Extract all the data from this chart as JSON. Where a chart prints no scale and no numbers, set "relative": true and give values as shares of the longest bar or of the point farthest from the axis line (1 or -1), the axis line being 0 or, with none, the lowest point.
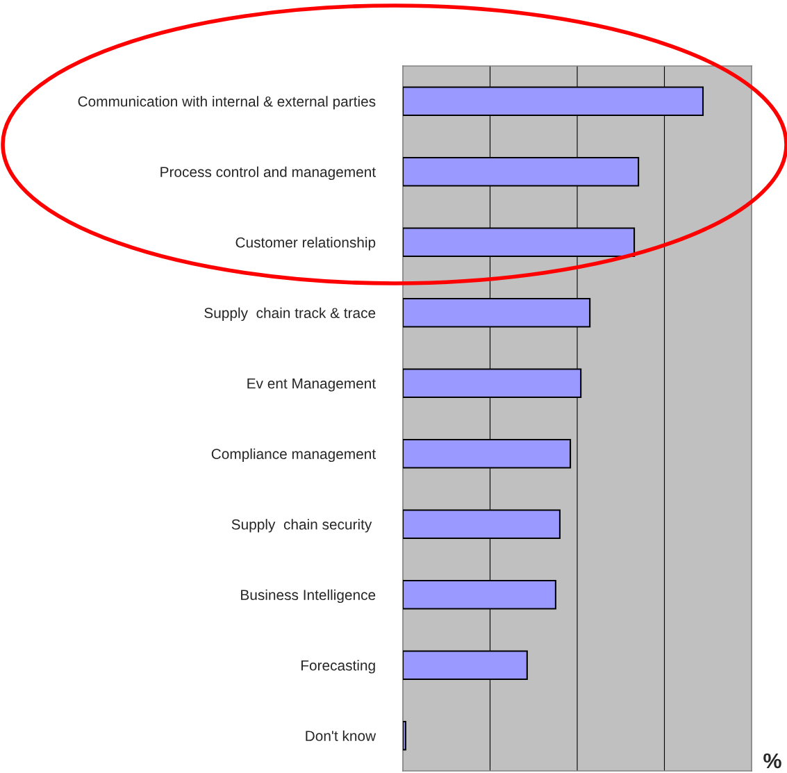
{
  "chart_data": {
    "type": "bar",
    "orientation": "horizontal",
    "relative": true,
    "xlabel": "%",
    "categories": [
      "Communication with internal & external parties",
      "Process control and management",
      "Customer relationship",
      "Supply  chain track & trace",
      "Ev ent Management",
      "Compliance management",
      "Supply  chain security ",
      "Business Intelligence",
      "Forecasting",
      "Don't know"
    ],
    "values": [
      1,
      0.785,
      0.771,
      0.623,
      0.593,
      0.558,
      0.523,
      0.509,
      0.414,
      0.009
    ],
    "color": "#9999ff",
    "grid": "x",
    "legend": false
  }
}
